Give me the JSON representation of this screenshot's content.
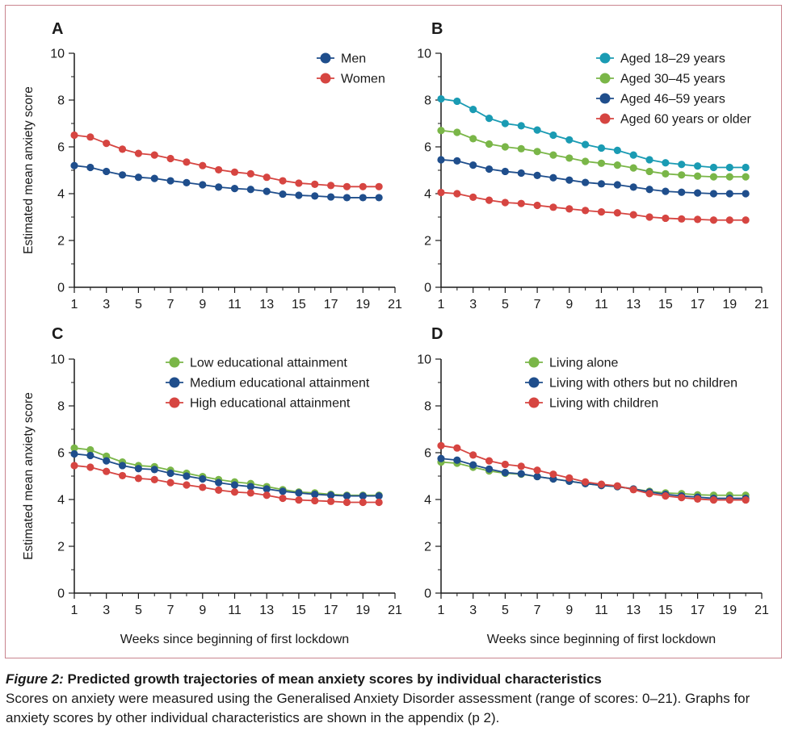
{
  "caption": {
    "label": "Figure 2:",
    "title": "Predicted growth trajectories of mean anxiety scores by individual characteristics",
    "text": "Scores on anxiety were measured using the Generalised Anxiety Disorder assessment (range of scores: 0–21). Graphs for anxiety scores by other individual characteristics are shown in the appendix (p 2)."
  },
  "colors": {
    "teal": "#1a9bb3",
    "green": "#7ab648",
    "blue": "#1f4e8c",
    "red": "#d64541"
  },
  "chart_data": [
    {
      "panel": "A",
      "type": "line",
      "ylabel": "Estimated mean anxiety score",
      "xlabel": "",
      "xlim": [
        1,
        21
      ],
      "ylim": [
        0,
        10
      ],
      "xticks": [
        1,
        3,
        5,
        7,
        9,
        11,
        13,
        15,
        17,
        19,
        21
      ],
      "yticks": [
        0,
        2,
        4,
        6,
        8,
        10
      ],
      "legend": "top-right",
      "x": [
        1,
        2,
        3,
        4,
        5,
        6,
        7,
        8,
        9,
        10,
        11,
        12,
        13,
        14,
        15,
        16,
        17,
        18,
        19,
        20
      ],
      "series": [
        {
          "name": "Men",
          "color": "#1f4e8c",
          "values": [
            5.2,
            5.12,
            4.95,
            4.8,
            4.7,
            4.65,
            4.55,
            4.47,
            4.38,
            4.28,
            4.22,
            4.18,
            4.1,
            3.98,
            3.93,
            3.9,
            3.86,
            3.83,
            3.83,
            3.83
          ]
        },
        {
          "name": "Women",
          "color": "#d64541",
          "values": [
            6.5,
            6.42,
            6.15,
            5.9,
            5.72,
            5.65,
            5.5,
            5.35,
            5.2,
            5.02,
            4.92,
            4.85,
            4.7,
            4.55,
            4.45,
            4.4,
            4.35,
            4.3,
            4.3,
            4.3
          ]
        }
      ]
    },
    {
      "panel": "B",
      "type": "line",
      "ylabel": "",
      "xlabel": "",
      "xlim": [
        1,
        21
      ],
      "ylim": [
        0,
        10
      ],
      "xticks": [
        1,
        3,
        5,
        7,
        9,
        11,
        13,
        15,
        17,
        19,
        21
      ],
      "yticks": [
        0,
        2,
        4,
        6,
        8,
        10
      ],
      "legend": "top-right",
      "x": [
        1,
        2,
        3,
        4,
        5,
        6,
        7,
        8,
        9,
        10,
        11,
        12,
        13,
        14,
        15,
        16,
        17,
        18,
        19,
        20
      ],
      "series": [
        {
          "name": "Aged 18–29 years",
          "color": "#1a9bb3",
          "values": [
            8.05,
            7.95,
            7.6,
            7.22,
            7.0,
            6.9,
            6.72,
            6.5,
            6.3,
            6.1,
            5.95,
            5.85,
            5.65,
            5.45,
            5.32,
            5.25,
            5.18,
            5.12,
            5.12,
            5.12
          ]
        },
        {
          "name": "Aged 30–45 years",
          "color": "#7ab648",
          "values": [
            6.7,
            6.62,
            6.35,
            6.12,
            6.0,
            5.92,
            5.8,
            5.65,
            5.52,
            5.38,
            5.3,
            5.22,
            5.1,
            4.95,
            4.85,
            4.8,
            4.75,
            4.72,
            4.72,
            4.72
          ]
        },
        {
          "name": "Aged 46–59 years",
          "color": "#1f4e8c",
          "values": [
            5.45,
            5.4,
            5.22,
            5.05,
            4.95,
            4.88,
            4.78,
            4.68,
            4.58,
            4.48,
            4.42,
            4.38,
            4.28,
            4.18,
            4.1,
            4.06,
            4.03,
            4.0,
            4.0,
            4.0
          ]
        },
        {
          "name": "Aged 60 years or older",
          "color": "#d64541",
          "values": [
            4.05,
            4.0,
            3.85,
            3.72,
            3.62,
            3.58,
            3.5,
            3.42,
            3.35,
            3.28,
            3.22,
            3.18,
            3.1,
            3.0,
            2.95,
            2.92,
            2.9,
            2.87,
            2.87,
            2.87
          ]
        }
      ]
    },
    {
      "panel": "C",
      "type": "line",
      "ylabel": "Estimated mean anxiety score",
      "xlabel": "Weeks since beginning of first lockdown",
      "xlim": [
        1,
        21
      ],
      "ylim": [
        0,
        10
      ],
      "xticks": [
        1,
        3,
        5,
        7,
        9,
        11,
        13,
        15,
        17,
        19,
        21
      ],
      "yticks": [
        0,
        2,
        4,
        6,
        8,
        10
      ],
      "legend": "top-right",
      "x": [
        1,
        2,
        3,
        4,
        5,
        6,
        7,
        8,
        9,
        10,
        11,
        12,
        13,
        14,
        15,
        16,
        17,
        18,
        19,
        20
      ],
      "series": [
        {
          "name": "Low educational attainment",
          "color": "#7ab648",
          "values": [
            6.2,
            6.12,
            5.85,
            5.6,
            5.45,
            5.4,
            5.25,
            5.12,
            4.98,
            4.85,
            4.75,
            4.68,
            4.55,
            4.42,
            4.32,
            4.28,
            4.22,
            4.18,
            4.18,
            4.18
          ]
        },
        {
          "name": "Medium educational attainment",
          "color": "#1f4e8c",
          "values": [
            5.95,
            5.88,
            5.65,
            5.45,
            5.32,
            5.28,
            5.12,
            5.0,
            4.88,
            4.72,
            4.62,
            4.55,
            4.45,
            4.35,
            4.28,
            4.22,
            4.18,
            4.15,
            4.15,
            4.15
          ]
        },
        {
          "name": "High educational attainment",
          "color": "#d64541",
          "values": [
            5.45,
            5.38,
            5.2,
            5.02,
            4.9,
            4.85,
            4.72,
            4.62,
            4.52,
            4.4,
            4.32,
            4.28,
            4.18,
            4.05,
            3.98,
            3.95,
            3.92,
            3.88,
            3.88,
            3.88
          ]
        }
      ]
    },
    {
      "panel": "D",
      "type": "line",
      "ylabel": "",
      "xlabel": "Weeks since beginning of first lockdown",
      "xlim": [
        1,
        21
      ],
      "ylim": [
        0,
        10
      ],
      "xticks": [
        1,
        3,
        5,
        7,
        9,
        11,
        13,
        15,
        17,
        19,
        21
      ],
      "yticks": [
        0,
        2,
        4,
        6,
        8,
        10
      ],
      "legend": "top-right",
      "x": [
        1,
        2,
        3,
        4,
        5,
        6,
        7,
        8,
        9,
        10,
        11,
        12,
        13,
        14,
        15,
        16,
        17,
        18,
        19,
        20
      ],
      "series": [
        {
          "name": "Living alone",
          "color": "#7ab648",
          "values": [
            5.6,
            5.55,
            5.38,
            5.22,
            5.12,
            5.08,
            4.98,
            4.88,
            4.78,
            4.68,
            4.6,
            4.55,
            4.45,
            4.35,
            4.28,
            4.25,
            4.2,
            4.18,
            4.18,
            4.18
          ]
        },
        {
          "name": "Living with others but no children",
          "color": "#1f4e8c",
          "values": [
            5.75,
            5.68,
            5.48,
            5.3,
            5.15,
            5.1,
            4.98,
            4.88,
            4.78,
            4.68,
            4.6,
            4.55,
            4.45,
            4.32,
            4.22,
            4.15,
            4.1,
            4.05,
            4.05,
            4.05
          ]
        },
        {
          "name": "Living with children",
          "color": "#d64541",
          "values": [
            6.3,
            6.2,
            5.9,
            5.65,
            5.5,
            5.42,
            5.25,
            5.08,
            4.92,
            4.75,
            4.65,
            4.58,
            4.42,
            4.25,
            4.15,
            4.08,
            4.02,
            3.98,
            3.98,
            3.98
          ]
        }
      ]
    }
  ]
}
